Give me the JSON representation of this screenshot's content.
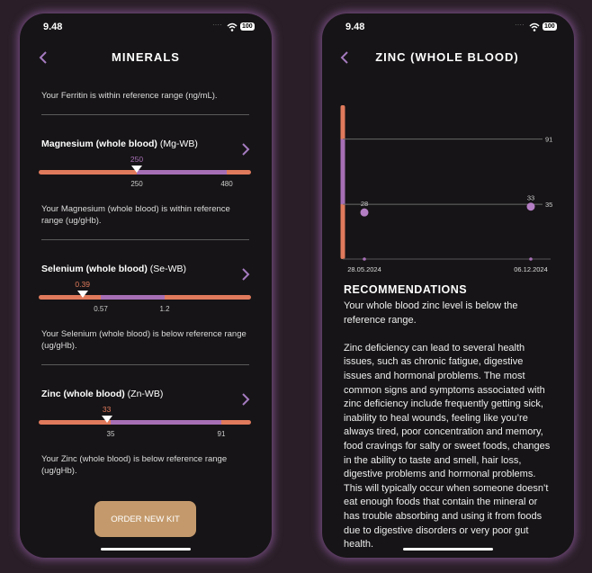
{
  "minerals_screen": {
    "status_time": "9.48",
    "battery": "100",
    "title": "MINERALS",
    "ferritin_note": "Your Ferritin is within reference range (ng/mL).",
    "minerals": [
      {
        "name": "Magnesium (whole blood)",
        "code": "(Mg-WB)",
        "value": 250,
        "low": 250,
        "high": 480,
        "note": "Your Magnesium (whole blood) is within reference range (ug/gHb)."
      },
      {
        "name": "Selenium (whole blood)",
        "code": "(Se-WB)",
        "value": 0.39,
        "low": 0.57,
        "high": 1.2,
        "note": "Your Selenium (whole blood) is below reference range (ug/gHb)."
      },
      {
        "name": "Zinc (whole blood)",
        "code": "(Zn-WB)",
        "value": 33,
        "low": 35,
        "high": 91,
        "note": "Your Zinc (whole blood) is below reference range (ug/gHb)."
      }
    ],
    "button": "ORDER NEW KIT"
  },
  "zinc_screen": {
    "status_time": "9.48",
    "battery": "100",
    "title": "ZINC (WHOLE BLOOD)",
    "recommendations": {
      "heading": "RECOMMENDATIONS",
      "paragraphs": [
        "Your whole blood zinc level is below the reference range.",
        "Zinc deficiency can lead to several health issues, such as chronic fatigue, digestive issues and hormonal problems. The most common signs and symptoms associated with zinc deficiency include frequently getting sick, inability to heal wounds, feeling like you’re always tired, poor concentration and memory, food cravings for salty or sweet foods, changes in the ability to taste and smell, hair loss, digestive problems and hormonal problems. This will typically occur when someone doesn’t eat enough foods that contain the mineral or has trouble absorbing and using it from foods due to digestive disorders or very poor gut health."
      ]
    }
  },
  "chart_data": {
    "type": "line",
    "categories": [
      "28.05.2024",
      "06.12.2024"
    ],
    "series": [
      {
        "color": "#e07a5c",
        "values": [
          28,
          33
        ]
      }
    ],
    "ylim": [
      -12,
      120
    ],
    "yticks": [
      35,
      91
    ],
    "grid": true
  }
}
